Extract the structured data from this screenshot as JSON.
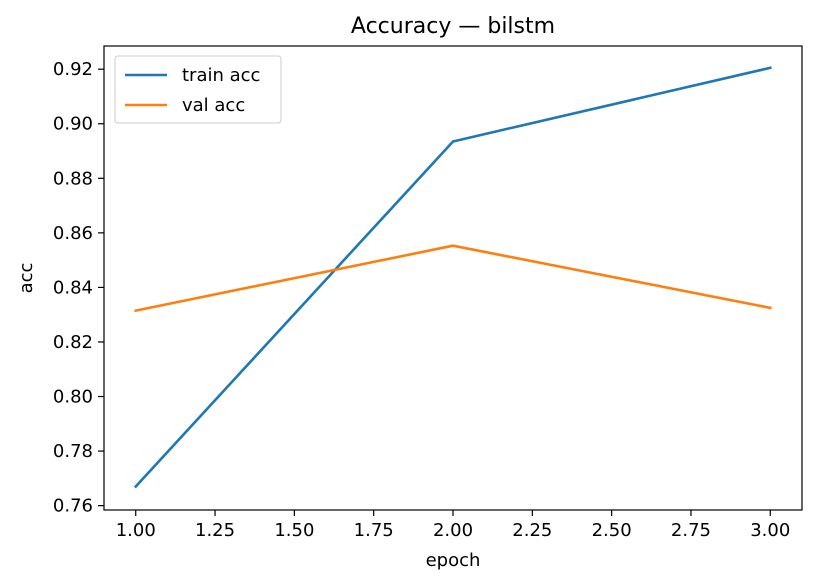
{
  "chart_data": {
    "type": "line",
    "title": "Accuracy — bilstm",
    "xlabel": "epoch",
    "ylabel": "acc",
    "x": [
      1,
      2,
      3
    ],
    "xlim": [
      0.9,
      3.1
    ],
    "ylim": [
      0.7584,
      0.9285
    ],
    "xticks": [
      1.0,
      1.25,
      1.5,
      1.75,
      2.0,
      2.25,
      2.5,
      2.75,
      3.0
    ],
    "xtick_labels": [
      "1.00",
      "1.25",
      "1.50",
      "1.75",
      "2.00",
      "2.25",
      "2.50",
      "2.75",
      "3.00"
    ],
    "yticks": [
      0.76,
      0.78,
      0.8,
      0.82,
      0.84,
      0.86,
      0.88,
      0.9,
      0.92
    ],
    "ytick_labels": [
      "0.76",
      "0.78",
      "0.80",
      "0.82",
      "0.84",
      "0.86",
      "0.88",
      "0.90",
      "0.92"
    ],
    "grid": false,
    "legend_position": "top-left",
    "series": [
      {
        "name": "train acc",
        "values": [
          0.767,
          0.8935,
          0.9205
        ],
        "color": "#1f77b4"
      },
      {
        "name": "val acc",
        "values": [
          0.8315,
          0.8553,
          0.8325
        ],
        "color": "#ff7f0e"
      }
    ]
  }
}
